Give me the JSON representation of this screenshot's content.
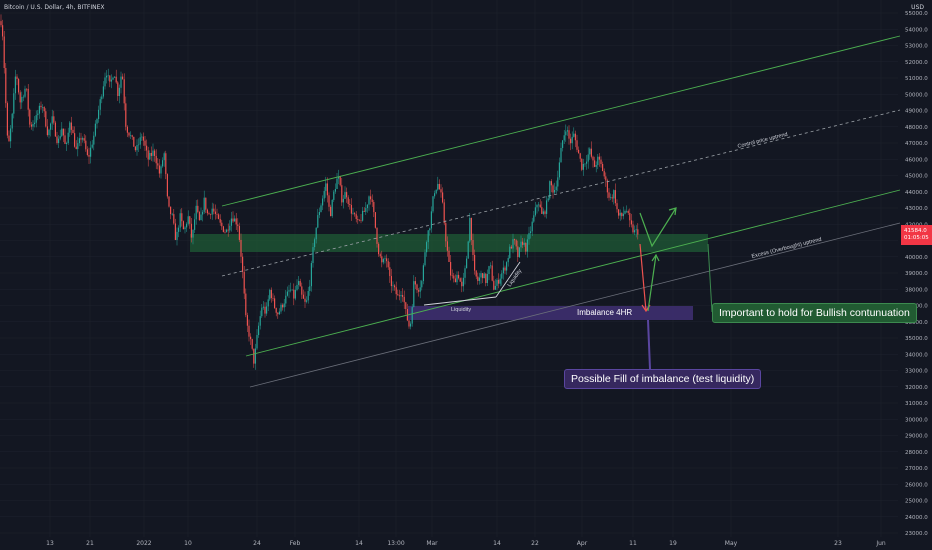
{
  "header": {
    "symbol": "Bitcoin / U.S. Dollar, 4h, BITFINEX",
    "currency": "USD"
  },
  "price_tag": {
    "price": "41584.0",
    "countdown": "01:05:05"
  },
  "annotations": {
    "control_uptrend": "Control price uptrend",
    "excess_uptrend": "Excess (Overbought) uptrend",
    "liquidity_low": "Liquidity",
    "liquidity_diag": "Liquidity",
    "imbalance": "Imbalance 4HR",
    "hold_label": "Important to hold for Bullish contunuation",
    "fill_label": "Possible Fill of imbalance (test liquidity)"
  },
  "colors": {
    "background": "#131722",
    "up": "#26a69a",
    "down": "#ef5350",
    "channel": "#4caf50",
    "zone_green": "#1f5b36",
    "zone_purple": "#3b2d6b",
    "price_tag": "#f23645"
  },
  "chart_data": {
    "type": "candlestick",
    "title": "Bitcoin / U.S. Dollar, 4h, BITFINEX",
    "y_label": "USD",
    "ylim": [
      23000,
      55500
    ],
    "y_ticks": [
      55000,
      54000,
      53000,
      52000,
      51000,
      50000,
      49000,
      48000,
      47000,
      46000,
      45000,
      44000,
      43000,
      42000,
      41000,
      40000,
      39000,
      38000,
      37000,
      36000,
      35000,
      34000,
      33000,
      32000,
      31000,
      30000,
      29000,
      28000,
      27000,
      26000,
      25000,
      24000,
      23000
    ],
    "y_tick_labels": [
      "55000.0",
      "54000.0",
      "53000.0",
      "52000.0",
      "51000.0",
      "50000.0",
      "49000.0",
      "48000.0",
      "47000.0",
      "46000.0",
      "45000.0",
      "44000.0",
      "43000.0",
      "42000.0",
      "41000.0",
      "40000.0",
      "39000.0",
      "38000.0",
      "37000.0",
      "36000.0",
      "35000.0",
      "34000.0",
      "33000.0",
      "32000.0",
      "31000.0",
      "30000.0",
      "29000.0",
      "28000.0",
      "27000.0",
      "26000.0",
      "25000.0",
      "24000.0",
      "23000.0"
    ],
    "x_tick_labels": [
      "13",
      "21",
      "2022",
      "10",
      "24",
      "Feb",
      "14",
      "13:00",
      "Mar",
      "14",
      "22",
      "Apr",
      "11",
      "19",
      "May",
      "23",
      "Jun"
    ],
    "price_path": [
      [
        0,
        55000
      ],
      [
        3,
        53500
      ],
      [
        5,
        50500
      ],
      [
        8,
        46500
      ],
      [
        12,
        48500
      ],
      [
        16,
        51500
      ],
      [
        20,
        49500
      ],
      [
        26,
        50500
      ],
      [
        30,
        48000
      ],
      [
        36,
        48500
      ],
      [
        42,
        49500
      ],
      [
        48,
        47500
      ],
      [
        52,
        48500
      ],
      [
        58,
        47000
      ],
      [
        62,
        48000
      ],
      [
        66,
        46500
      ],
      [
        70,
        48500
      ],
      [
        76,
        46500
      ],
      [
        82,
        47500
      ],
      [
        88,
        46000
      ],
      [
        94,
        47500
      ],
      [
        100,
        49500
      ],
      [
        106,
        51500
      ],
      [
        110,
        50500
      ],
      [
        114,
        51500
      ],
      [
        118,
        50000
      ],
      [
        122,
        51500
      ],
      [
        126,
        48000
      ],
      [
        130,
        47500
      ],
      [
        136,
        46500
      ],
      [
        142,
        47500
      ],
      [
        148,
        46000
      ],
      [
        154,
        46500
      ],
      [
        160,
        45000
      ],
      [
        164,
        46500
      ],
      [
        168,
        43000
      ],
      [
        172,
        42500
      ],
      [
        176,
        41000
      ],
      [
        180,
        42500
      ],
      [
        184,
        41500
      ],
      [
        188,
        42500
      ],
      [
        192,
        41000
      ],
      [
        196,
        43000
      ],
      [
        200,
        42000
      ],
      [
        204,
        43500
      ],
      [
        208,
        42500
      ],
      [
        212,
        43000
      ],
      [
        216,
        42500
      ],
      [
        220,
        42000
      ],
      [
        226,
        41500
      ],
      [
        232,
        42500
      ],
      [
        238,
        42000
      ],
      [
        242,
        39500
      ],
      [
        246,
        36000
      ],
      [
        250,
        35000
      ],
      [
        254,
        33500
      ],
      [
        258,
        35500
      ],
      [
        262,
        37000
      ],
      [
        266,
        36500
      ],
      [
        270,
        38000
      ],
      [
        274,
        37000
      ],
      [
        278,
        36500
      ],
      [
        282,
        37000
      ],
      [
        286,
        37500
      ],
      [
        290,
        38000
      ],
      [
        294,
        37500
      ],
      [
        298,
        38500
      ],
      [
        302,
        37500
      ],
      [
        306,
        37000
      ],
      [
        310,
        38500
      ],
      [
        314,
        41000
      ],
      [
        318,
        42500
      ],
      [
        322,
        43500
      ],
      [
        326,
        44500
      ],
      [
        330,
        42500
      ],
      [
        334,
        44000
      ],
      [
        338,
        45000
      ],
      [
        342,
        43500
      ],
      [
        346,
        44000
      ],
      [
        350,
        43000
      ],
      [
        354,
        42500
      ],
      [
        358,
        42000
      ],
      [
        362,
        42500
      ],
      [
        366,
        43000
      ],
      [
        370,
        44000
      ],
      [
        374,
        42500
      ],
      [
        378,
        40500
      ],
      [
        382,
        39500
      ],
      [
        386,
        40000
      ],
      [
        390,
        38500
      ],
      [
        394,
        38000
      ],
      [
        398,
        37500
      ],
      [
        402,
        38000
      ],
      [
        406,
        36500
      ],
      [
        410,
        35500
      ],
      [
        414,
        38500
      ],
      [
        418,
        38000
      ],
      [
        422,
        38500
      ],
      [
        426,
        41000
      ],
      [
        430,
        42000
      ],
      [
        434,
        44000
      ],
      [
        438,
        44500
      ],
      [
        442,
        43500
      ],
      [
        446,
        41000
      ],
      [
        450,
        39000
      ],
      [
        454,
        38500
      ],
      [
        458,
        39000
      ],
      [
        462,
        38000
      ],
      [
        466,
        39500
      ],
      [
        470,
        42500
      ],
      [
        474,
        39000
      ],
      [
        478,
        38500
      ],
      [
        482,
        39000
      ],
      [
        486,
        38500
      ],
      [
        490,
        39500
      ],
      [
        494,
        38000
      ],
      [
        498,
        38500
      ],
      [
        502,
        39000
      ],
      [
        506,
        39500
      ],
      [
        510,
        40500
      ],
      [
        514,
        41000
      ],
      [
        518,
        40000
      ],
      [
        522,
        41000
      ],
      [
        526,
        40500
      ],
      [
        530,
        41500
      ],
      [
        534,
        42500
      ],
      [
        538,
        43500
      ],
      [
        542,
        42500
      ],
      [
        546,
        43000
      ],
      [
        550,
        44500
      ],
      [
        554,
        44000
      ],
      [
        558,
        45000
      ],
      [
        562,
        47000
      ],
      [
        566,
        48000
      ],
      [
        570,
        47000
      ],
      [
        574,
        47500
      ],
      [
        578,
        46500
      ],
      [
        582,
        45500
      ],
      [
        586,
        46000
      ],
      [
        590,
        46500
      ],
      [
        594,
        45500
      ],
      [
        598,
        46000
      ],
      [
        602,
        45500
      ],
      [
        606,
        44500
      ],
      [
        610,
        43500
      ],
      [
        614,
        44000
      ],
      [
        618,
        42500
      ],
      [
        622,
        42500
      ],
      [
        626,
        43000
      ],
      [
        630,
        42000
      ],
      [
        634,
        41500
      ],
      [
        638,
        41584
      ]
    ]
  }
}
